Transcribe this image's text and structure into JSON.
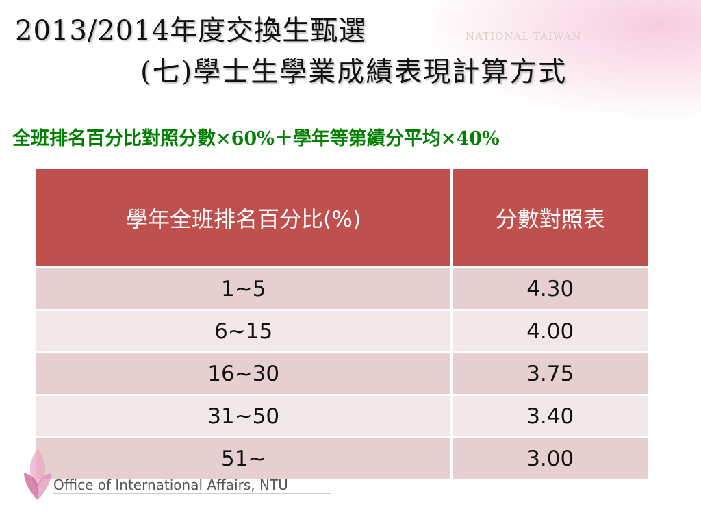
{
  "header": {
    "title_line1": "2013/2014年度交換生甄選",
    "title_line2": "(七)學士生學業成績表現計算方式",
    "watermark": "NATIONAL TAIWAN"
  },
  "formula": "全班排名百分比對照分數×60%＋學年等第績分平均×40%",
  "table": {
    "columns": [
      "學年全班排名百分比(%)",
      "分數對照表"
    ],
    "rows": [
      [
        "1~5",
        "4.30"
      ],
      [
        "6~15",
        "4.00"
      ],
      [
        "16~30",
        "3.75"
      ],
      [
        "31~50",
        "3.40"
      ],
      [
        "51~",
        "3.00"
      ]
    ]
  },
  "footer": {
    "text": "Office of International Affairs, NTU"
  }
}
